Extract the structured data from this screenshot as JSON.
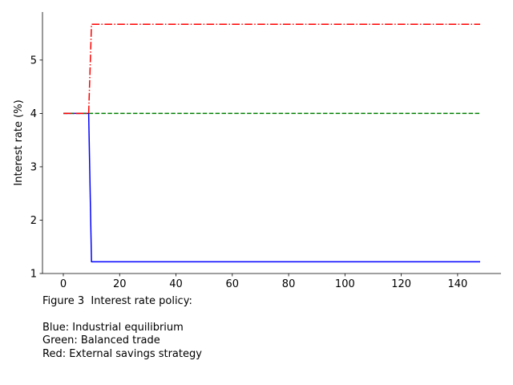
{
  "chart_data": {
    "type": "line",
    "title": "",
    "xlabel": "",
    "ylabel": "Interest rate (%)",
    "xlim": [
      -7.4,
      155.4
    ],
    "ylim": [
      1.0,
      5.9
    ],
    "x_ticks": [
      0,
      20,
      40,
      60,
      80,
      100,
      120,
      140
    ],
    "y_ticks": [
      1,
      2,
      3,
      4,
      5
    ],
    "grid": false,
    "legend": "none",
    "series": [
      {
        "color": "#0000ff",
        "style": "solid",
        "points": [
          [
            0,
            4.0
          ],
          [
            9,
            4.0
          ],
          [
            10,
            1.22
          ],
          [
            148,
            1.22
          ]
        ]
      },
      {
        "color": "#008000",
        "style": "dashed",
        "points": [
          [
            0,
            4.0
          ],
          [
            148,
            4.0
          ]
        ]
      },
      {
        "color": "#ff0000",
        "style": "dashdot",
        "points": [
          [
            0,
            4.0
          ],
          [
            9,
            4.0
          ],
          [
            10,
            5.67
          ],
          [
            148,
            5.67
          ]
        ]
      }
    ]
  },
  "caption": {
    "line1": "Figure 3  Interest rate policy:",
    "line2": "",
    "line3": "Blue: Industrial equilibrium",
    "line4": "Green: Balanced trade",
    "line5": "Red: External savings strategy"
  }
}
